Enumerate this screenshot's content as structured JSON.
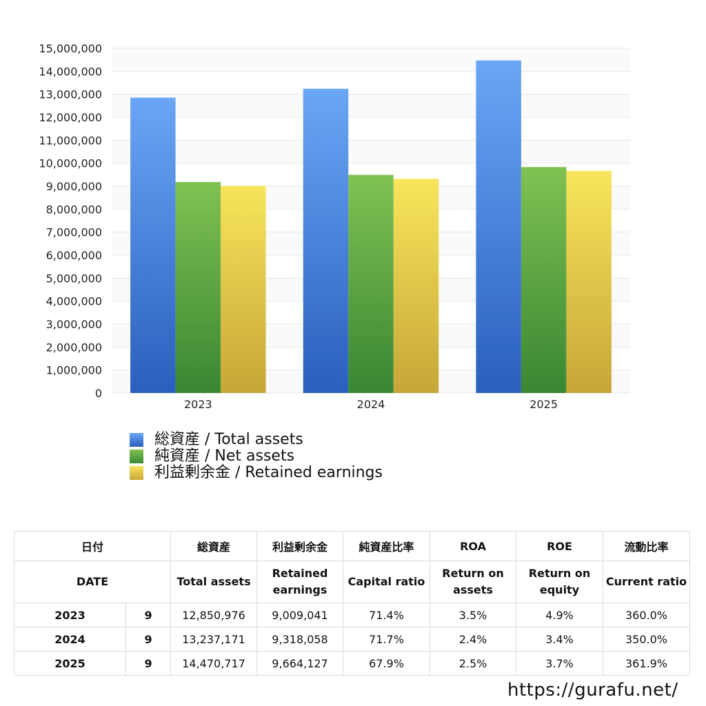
{
  "chart_data": {
    "type": "bar",
    "categories": [
      "2023",
      "2024",
      "2025"
    ],
    "series": [
      {
        "name": "総資産 / Total assets",
        "values": [
          12850976,
          13237171,
          14470717
        ],
        "color": "#4a86e0"
      },
      {
        "name": "純資産 / Net assets",
        "values": [
          9180000,
          9490000,
          9830000
        ],
        "color": "#5aa545"
      },
      {
        "name": "利益剰余金 / Retained earnings",
        "values": [
          9009041,
          9318058,
          9664127
        ],
        "color": "#e8cf4a"
      }
    ],
    "ylim": [
      0,
      15000000
    ],
    "yticks": [
      "0",
      "1,000,000",
      "2,000,000",
      "3,000,000",
      "4,000,000",
      "5,000,000",
      "6,000,000",
      "7,000,000",
      "8,000,000",
      "9,000,000",
      "10,000,000",
      "11,000,000",
      "12,000,000",
      "13,000,000",
      "14,000,000",
      "15,000,000"
    ],
    "grid": true,
    "legend_position": "bottom-left",
    "title": "",
    "xlabel": "",
    "ylabel": ""
  },
  "table": {
    "header_jp": {
      "date": "日付",
      "total_assets": "総資産",
      "retained": "利益剰余金",
      "capital_ratio": "純資産比率",
      "roa": "ROA",
      "roe": "ROE",
      "current_ratio": "流動比率"
    },
    "header_en": {
      "date": "DATE",
      "total_assets": "Total assets",
      "retained_1": "Retained",
      "retained_2": "earnings",
      "capital_ratio": "Capital ratio",
      "roa_1": "Return on",
      "roa_2": "assets",
      "roe_1": "Return on",
      "roe_2": "equity",
      "current_ratio": "Current ratio"
    },
    "rows": [
      {
        "year": "2023",
        "month": "9",
        "total_assets": "12,850,976",
        "retained": "9,009,041",
        "capital_ratio": "71.4%",
        "roa": "3.5%",
        "roe": "4.9%",
        "current_ratio": "360.0%"
      },
      {
        "year": "2024",
        "month": "9",
        "total_assets": "13,237,171",
        "retained": "9,318,058",
        "capital_ratio": "71.7%",
        "roa": "2.4%",
        "roe": "3.4%",
        "current_ratio": "350.0%"
      },
      {
        "year": "2025",
        "month": "9",
        "total_assets": "14,470,717",
        "retained": "9,664,127",
        "capital_ratio": "67.9%",
        "roa": "2.5%",
        "roe": "3.7%",
        "current_ratio": "361.9%"
      }
    ]
  },
  "footer": {
    "url": "https://gurafu.net/"
  }
}
